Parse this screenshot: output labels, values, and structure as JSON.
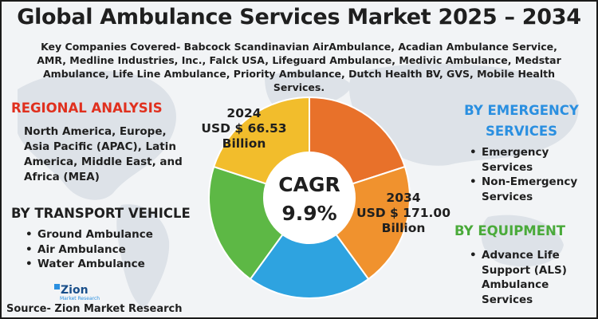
{
  "title": "Global Ambulance Services Market 2025 – 2034",
  "key_companies": "Key Companies Covered- Babcock Scandinavian AirAmbulance, Acadian Ambulance Service, AMR, Medline Industries, Inc., Falck USA, Lifeguard Ambulance, Medivic Ambulance, Medstar Ambulance, Life Line Ambulance, Priority Ambulance, Dutch Health BV, GVS, Mobile Health Services.",
  "regional": {
    "heading": "REGIONAL ANALYSIS",
    "text": "North America, Europe, Asia Pacific (APAC), Latin America, Middle East, and Africa (MEA)"
  },
  "transport": {
    "heading": "BY TRANSPORT VEHICLE",
    "items": [
      "Ground Ambulance",
      "Air Ambulance",
      "Water Ambulance"
    ]
  },
  "emergency": {
    "heading_line1": "BY EMERGENCY",
    "heading_line2": "SERVICES",
    "items": [
      "Emergency Services",
      "Non-Emergency Services"
    ]
  },
  "equipment": {
    "heading": "BY EQUIPMENT",
    "items": [
      "Advance Life Support (ALS) Ambulance Services"
    ]
  },
  "market": {
    "year_start": "2024",
    "value_start": "USD $ 66.53",
    "unit_start": "Billion",
    "year_end": "2034",
    "value_end": "USD $ 171.00",
    "unit_end": "Billion",
    "cagr_label": "CAGR",
    "cagr_value": "9.9%"
  },
  "donut_colors": [
    "#e8712a",
    "#f0922e",
    "#2ea3e0",
    "#5db845",
    "#f2bd2c"
  ],
  "logo": {
    "name": "Zion",
    "sub": "Market Research"
  },
  "source": "Source- Zion Market Research"
}
